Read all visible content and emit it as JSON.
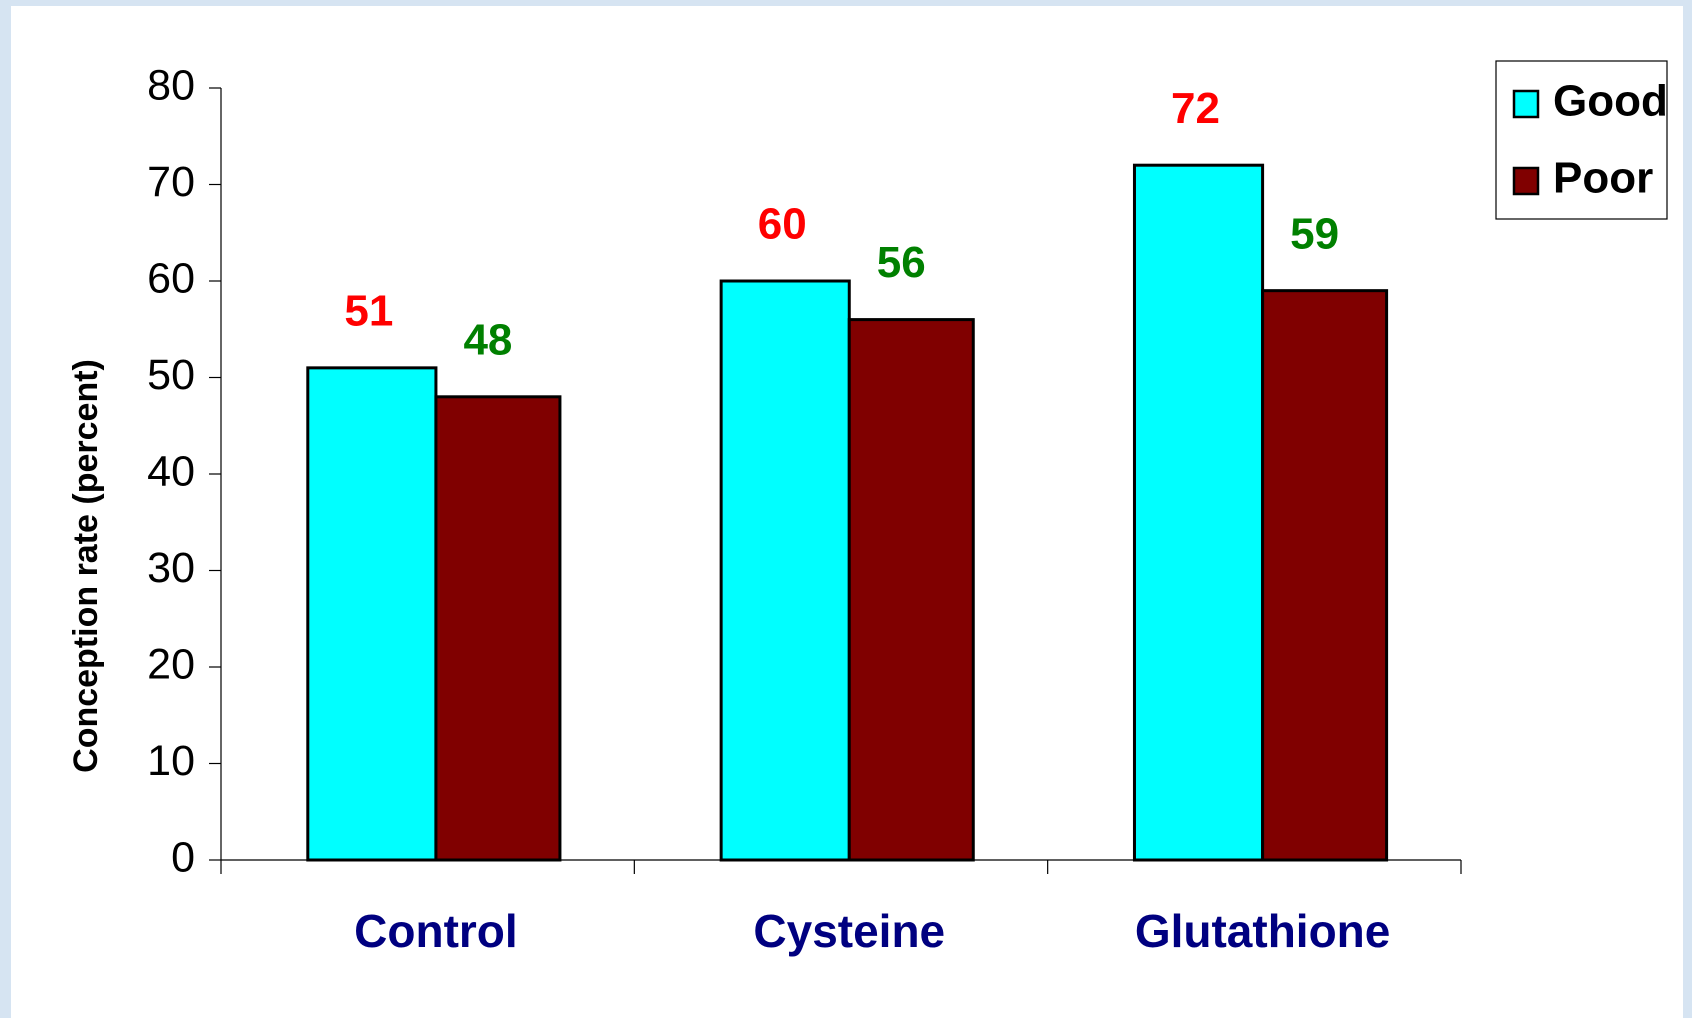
{
  "chart_data": {
    "type": "bar",
    "y_label": "Conception rate (percent)",
    "categories": [
      "Control",
      "Cysteine",
      "Glutathione"
    ],
    "series": [
      {
        "name": "Good",
        "color": "#00ffff",
        "label_color": "#ff0000",
        "values": [
          51,
          60,
          72
        ]
      },
      {
        "name": "Poor",
        "color": "#800000",
        "label_color": "#008000",
        "values": [
          48,
          56,
          59
        ]
      }
    ],
    "ylim": [
      0,
      80
    ],
    "yticks": [
      0,
      10,
      20,
      30,
      40,
      50,
      60,
      70,
      80
    ],
    "category_color": "#000080",
    "legend": "top-right"
  }
}
